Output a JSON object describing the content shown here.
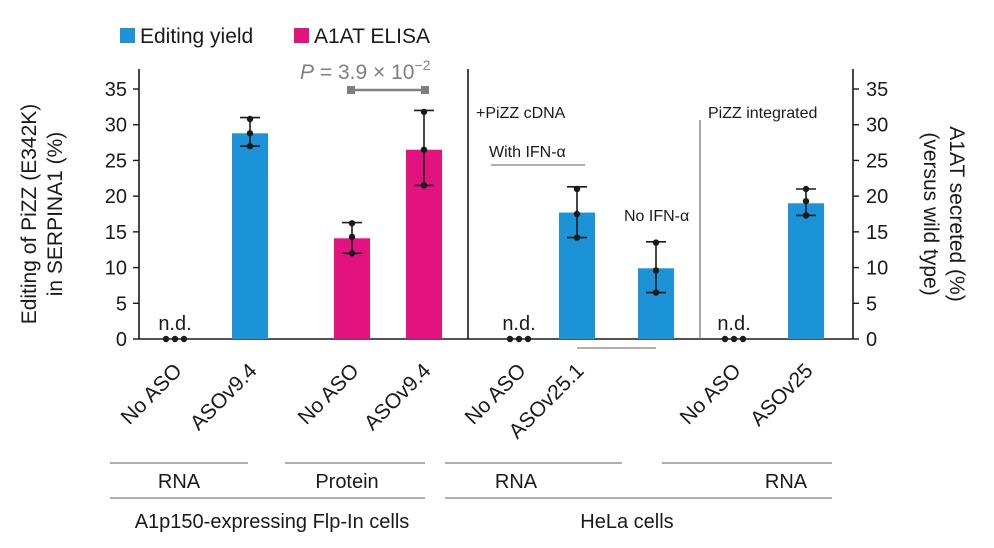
{
  "chart_data": {
    "type": "bar",
    "legend": [
      {
        "name": "Editing yield",
        "color": "#1b93d6"
      },
      {
        "name": "A1AT ELISA",
        "color": "#e2137e"
      }
    ],
    "ylabel_left_line1": "Editing of PiZZ (E342K)",
    "ylabel_left_line2": "in SERPINA1 (%)",
    "ylabel_right_line1": "A1AT secreted (%)",
    "ylabel_right_line2": "(versus wild type)",
    "ylim": [
      0,
      35
    ],
    "yticks": [
      "0",
      "5",
      "10",
      "15",
      "20",
      "25",
      "30",
      "35"
    ],
    "ytick_values": [
      0,
      5,
      10,
      15,
      20,
      25,
      30,
      35
    ],
    "bars": [
      {
        "category": "No ASO",
        "series": "Editing yield",
        "value": 0,
        "not_detected": true,
        "nd_label": "n.d."
      },
      {
        "category": "ASOv9.4",
        "series": "Editing yield",
        "value": 28.8,
        "err_low": 27.0,
        "err_high": 31.0,
        "points": [
          27.0,
          28.8,
          30.8
        ]
      },
      {
        "category": "No ASO",
        "series": "A1AT ELISA",
        "value": 14.1,
        "err_low": 12.0,
        "err_high": 16.3,
        "points": [
          12.0,
          14.3,
          16.2
        ]
      },
      {
        "category": "ASOv9.4",
        "series": "A1AT ELISA",
        "value": 26.5,
        "err_low": 21.5,
        "err_high": 32.0,
        "points": [
          21.5,
          26.5,
          31.8
        ]
      },
      {
        "category": "No ASO",
        "series": "Editing yield",
        "value": 0,
        "not_detected": true,
        "nd_label": "n.d."
      },
      {
        "category": "ASOv25.1",
        "series": "Editing yield",
        "value": 17.7,
        "err_low": 14.2,
        "err_high": 21.3,
        "points": [
          14.2,
          17.5,
          21.0
        ]
      },
      {
        "category": "",
        "series": "Editing yield",
        "value": 9.9,
        "err_low": 6.5,
        "err_high": 13.6,
        "points": [
          6.5,
          9.6,
          13.5
        ]
      },
      {
        "category": "No ASO",
        "series": "Editing yield",
        "value": 0,
        "not_detected": true,
        "nd_label": "n.d."
      },
      {
        "category": "ASOv25",
        "series": "Editing yield",
        "value": 19.0,
        "err_low": 17.3,
        "err_high": 21.0,
        "points": [
          17.3,
          19.3,
          21.0
        ]
      }
    ],
    "annotations": {
      "pvalue_prefix": "P",
      "pvalue_text": " = 3.9 × 10",
      "pvalue_exp": "−2",
      "pizz_cdna": "+PiZZ cDNA",
      "with_ifn": "With IFN-α",
      "no_ifn": "No IFN-α",
      "pizz_integrated": "PiZZ integrated"
    },
    "group_labels": {
      "rna1": "RNA",
      "protein": "Protein",
      "rna2": "RNA",
      "rna3": "RNA",
      "flpin": "A1p150-expressing Flp-In cells",
      "hela": "HeLa cells"
    }
  }
}
